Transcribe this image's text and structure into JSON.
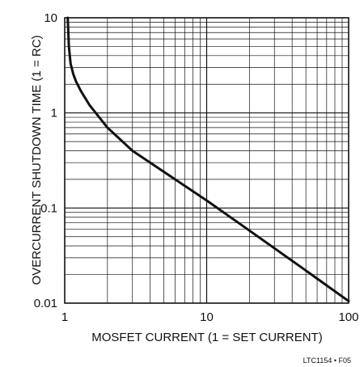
{
  "chart_data": {
    "type": "line",
    "title": "",
    "xlabel": "MOSFET CURRENT (1 = SET CURRENT)",
    "ylabel": "OVERCURRENT SHUTDOWN TIME (1 = RC)",
    "x_scale": "log",
    "y_scale": "log",
    "xlim": [
      1,
      100
    ],
    "ylim": [
      0.01,
      10
    ],
    "x_ticks": [
      "1",
      "10",
      "100"
    ],
    "y_ticks": [
      "10",
      "1",
      "0.1",
      "0.01"
    ],
    "grid": true,
    "legend": "none",
    "figure_id": "LTC1154 • F05",
    "series": [
      {
        "x": [
          1.05,
          1.07,
          1.1,
          1.15,
          1.2,
          1.3,
          1.5,
          2,
          3,
          5,
          10,
          20,
          50,
          100
        ],
        "y": [
          10,
          5.0,
          3.3,
          2.55,
          2.15,
          1.7,
          1.2,
          0.7,
          0.4,
          0.24,
          0.12,
          0.058,
          0.022,
          0.0105
        ]
      }
    ]
  }
}
